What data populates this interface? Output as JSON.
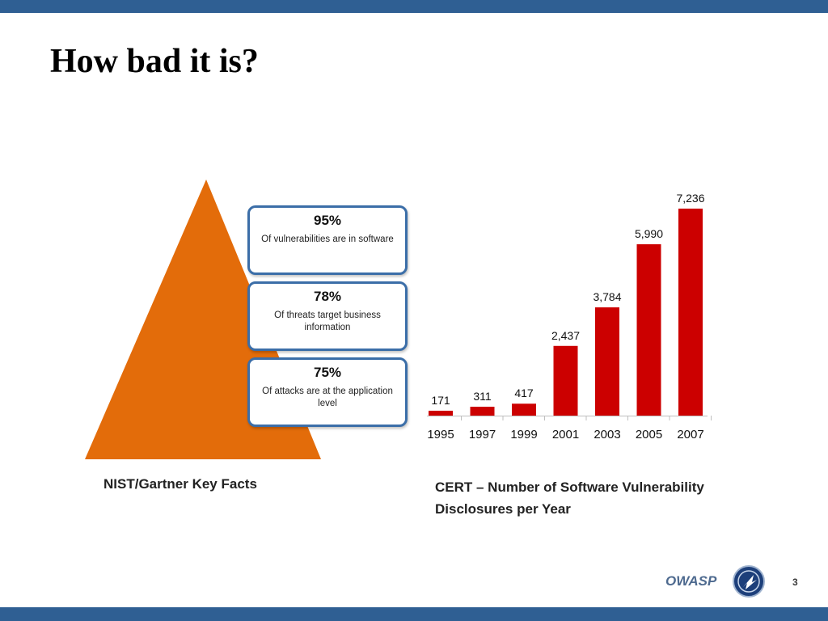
{
  "slide": {
    "title": "How bad it is?",
    "page_number": "3",
    "footer_brand": "OWASP"
  },
  "colors": {
    "header_bar": "#2f5f93",
    "pyramid": "#e36c0a",
    "box_border": "#3b6ea8",
    "bar": "#cc0000"
  },
  "key_facts": {
    "caption": "NIST/Gartner Key Facts",
    "items": [
      {
        "percent": "95%",
        "text": "Of vulnerabilities are in software"
      },
      {
        "percent": "78%",
        "text": "Of threats target business information"
      },
      {
        "percent": "75%",
        "text": "Of attacks are at the application level"
      }
    ]
  },
  "chart_data": {
    "type": "bar",
    "title": "CERT – Number of Software Vulnerability Disclosures per Year",
    "categories": [
      "1995",
      "1997",
      "1999",
      "2001",
      "2003",
      "2005",
      "2007"
    ],
    "values": [
      171,
      311,
      417,
      2437,
      3784,
      5990,
      7236
    ],
    "value_labels": [
      "171",
      "311",
      "417",
      "2,437",
      "3,784",
      "5,990",
      "7,236"
    ],
    "xlabel": "",
    "ylabel": "",
    "ylim": [
      0,
      7236
    ],
    "grid": false,
    "legend": "none"
  }
}
